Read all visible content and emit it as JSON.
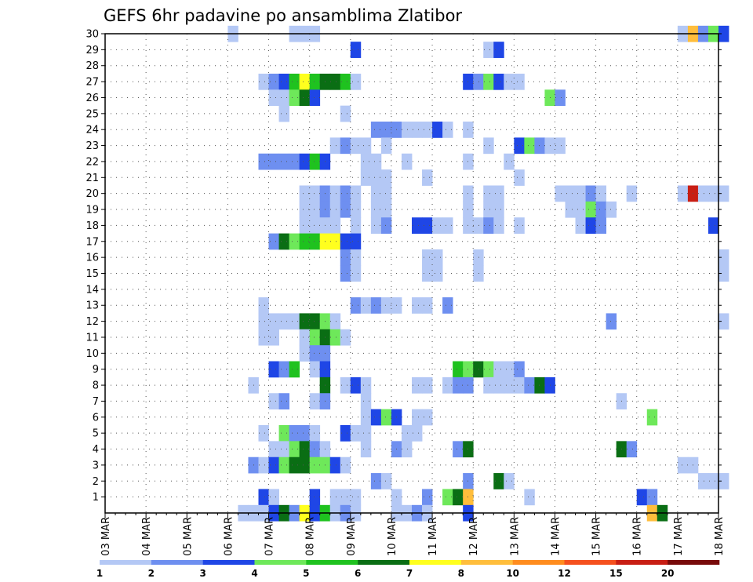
{
  "chart_data": {
    "type": "heatmap",
    "title": "GEFS 6hr padavine po ansamblima Zlatibor",
    "x_tick_labels": [
      "03 MAR",
      "04 MAR",
      "05 MAR",
      "06 MAR",
      "07 MAR",
      "08 MAR",
      "09 MAR",
      "10 MAR",
      "11 MAR",
      "12 MAR",
      "13 MAR",
      "14 MAR",
      "15 MAR",
      "16 MAR",
      "17 MAR",
      "18 MAR"
    ],
    "x_steps_per_day": 4,
    "y_tick_labels": [
      "1",
      "2",
      "3",
      "4",
      "5",
      "6",
      "7",
      "8",
      "9",
      "10",
      "11",
      "12",
      "13",
      "14",
      "15",
      "16",
      "17",
      "18",
      "19",
      "20",
      "21",
      "22",
      "23",
      "24",
      "25",
      "26",
      "27",
      "28",
      "29",
      "30"
    ],
    "y_range": [
      0,
      30
    ],
    "grid": true,
    "colorbar": {
      "position": "bottom",
      "labels": [
        "1",
        "2",
        "3",
        "4",
        "5",
        "6",
        "7",
        "8",
        "10",
        "12",
        "15",
        "20"
      ],
      "colors": [
        "#b4c8f5",
        "#6e8ff0",
        "#1f46e6",
        "#6ee85a",
        "#1fc21f",
        "#0a6e14",
        "#ffff1e",
        "#ffbe3c",
        "#ff8c1e",
        "#f5501e",
        "#c81e14",
        "#780a0a"
      ]
    },
    "cells": [
      [
        30,
        12,
        1
      ],
      [
        30,
        18,
        1
      ],
      [
        30,
        19,
        1
      ],
      [
        30,
        20,
        1
      ],
      [
        30,
        56,
        1
      ],
      [
        30,
        57,
        8
      ],
      [
        30,
        58,
        2
      ],
      [
        30,
        59,
        4
      ],
      [
        30,
        60,
        3
      ],
      [
        29,
        24,
        3
      ],
      [
        29,
        37,
        1
      ],
      [
        29,
        38,
        3
      ],
      [
        27,
        15,
        1
      ],
      [
        27,
        16,
        2
      ],
      [
        27,
        17,
        3
      ],
      [
        27,
        18,
        5
      ],
      [
        27,
        19,
        7
      ],
      [
        27,
        20,
        5
      ],
      [
        27,
        21,
        6
      ],
      [
        27,
        22,
        6
      ],
      [
        27,
        23,
        5
      ],
      [
        27,
        24,
        1
      ],
      [
        27,
        35,
        3
      ],
      [
        27,
        36,
        2
      ],
      [
        27,
        37,
        4
      ],
      [
        27,
        38,
        3
      ],
      [
        27,
        39,
        1
      ],
      [
        27,
        40,
        1
      ],
      [
        26,
        16,
        1
      ],
      [
        26,
        17,
        1
      ],
      [
        26,
        18,
        4
      ],
      [
        26,
        19,
        6
      ],
      [
        26,
        20,
        3
      ],
      [
        26,
        43,
        4
      ],
      [
        26,
        44,
        2
      ],
      [
        25,
        17,
        1
      ],
      [
        25,
        23,
        1
      ],
      [
        24,
        26,
        2
      ],
      [
        24,
        27,
        2
      ],
      [
        24,
        28,
        2
      ],
      [
        24,
        29,
        1
      ],
      [
        24,
        30,
        1
      ],
      [
        24,
        31,
        1
      ],
      [
        24,
        32,
        3
      ],
      [
        24,
        33,
        1
      ],
      [
        24,
        35,
        1
      ],
      [
        23,
        22,
        1
      ],
      [
        23,
        23,
        2
      ],
      [
        23,
        24,
        1
      ],
      [
        23,
        25,
        1
      ],
      [
        23,
        27,
        1
      ],
      [
        23,
        37,
        1
      ],
      [
        23,
        40,
        3
      ],
      [
        23,
        41,
        4
      ],
      [
        23,
        42,
        2
      ],
      [
        23,
        43,
        1
      ],
      [
        23,
        44,
        1
      ],
      [
        22,
        15,
        2
      ],
      [
        22,
        16,
        2
      ],
      [
        22,
        17,
        2
      ],
      [
        22,
        18,
        2
      ],
      [
        22,
        19,
        3
      ],
      [
        22,
        20,
        5
      ],
      [
        22,
        21,
        3
      ],
      [
        22,
        25,
        1
      ],
      [
        22,
        26,
        1
      ],
      [
        22,
        29,
        1
      ],
      [
        22,
        35,
        1
      ],
      [
        22,
        39,
        1
      ],
      [
        21,
        25,
        1
      ],
      [
        21,
        26,
        1
      ],
      [
        21,
        27,
        1
      ],
      [
        21,
        31,
        1
      ],
      [
        21,
        40,
        1
      ],
      [
        20,
        19,
        1
      ],
      [
        20,
        20,
        1
      ],
      [
        20,
        21,
        2
      ],
      [
        20,
        22,
        1
      ],
      [
        20,
        23,
        2
      ],
      [
        20,
        24,
        1
      ],
      [
        20,
        26,
        1
      ],
      [
        20,
        27,
        1
      ],
      [
        20,
        35,
        1
      ],
      [
        20,
        37,
        1
      ],
      [
        20,
        38,
        1
      ],
      [
        20,
        44,
        1
      ],
      [
        20,
        45,
        1
      ],
      [
        20,
        46,
        1
      ],
      [
        20,
        47,
        2
      ],
      [
        20,
        48,
        1
      ],
      [
        20,
        51,
        1
      ],
      [
        20,
        56,
        1
      ],
      [
        20,
        57,
        11
      ],
      [
        20,
        58,
        1
      ],
      [
        20,
        59,
        1
      ],
      [
        20,
        60,
        1
      ],
      [
        19,
        19,
        1
      ],
      [
        19,
        20,
        1
      ],
      [
        19,
        21,
        2
      ],
      [
        19,
        22,
        1
      ],
      [
        19,
        23,
        2
      ],
      [
        19,
        24,
        1
      ],
      [
        19,
        26,
        1
      ],
      [
        19,
        27,
        1
      ],
      [
        19,
        35,
        1
      ],
      [
        19,
        37,
        1
      ],
      [
        19,
        38,
        1
      ],
      [
        19,
        45,
        1
      ],
      [
        19,
        46,
        1
      ],
      [
        19,
        47,
        4
      ],
      [
        19,
        48,
        2
      ],
      [
        19,
        49,
        1
      ],
      [
        18,
        19,
        1
      ],
      [
        18,
        20,
        1
      ],
      [
        18,
        21,
        1
      ],
      [
        18,
        22,
        1
      ],
      [
        18,
        24,
        1
      ],
      [
        18,
        26,
        1
      ],
      [
        18,
        27,
        2
      ],
      [
        18,
        30,
        3
      ],
      [
        18,
        31,
        3
      ],
      [
        18,
        32,
        1
      ],
      [
        18,
        33,
        1
      ],
      [
        18,
        35,
        1
      ],
      [
        18,
        36,
        1
      ],
      [
        18,
        37,
        2
      ],
      [
        18,
        38,
        1
      ],
      [
        18,
        40,
        1
      ],
      [
        18,
        46,
        1
      ],
      [
        18,
        47,
        3
      ],
      [
        18,
        48,
        2
      ],
      [
        18,
        59,
        3
      ],
      [
        17,
        16,
        2
      ],
      [
        17,
        17,
        6
      ],
      [
        17,
        18,
        4
      ],
      [
        17,
        19,
        5
      ],
      [
        17,
        20,
        5
      ],
      [
        17,
        21,
        7
      ],
      [
        17,
        22,
        7
      ],
      [
        17,
        23,
        3
      ],
      [
        17,
        24,
        3
      ],
      [
        16,
        23,
        2
      ],
      [
        16,
        24,
        1
      ],
      [
        16,
        31,
        1
      ],
      [
        16,
        32,
        1
      ],
      [
        16,
        36,
        1
      ],
      [
        16,
        60,
        1
      ],
      [
        15,
        23,
        2
      ],
      [
        15,
        24,
        1
      ],
      [
        15,
        31,
        1
      ],
      [
        15,
        32,
        1
      ],
      [
        15,
        36,
        1
      ],
      [
        15,
        60,
        1
      ],
      [
        13,
        15,
        1
      ],
      [
        13,
        24,
        2
      ],
      [
        13,
        25,
        1
      ],
      [
        13,
        26,
        2
      ],
      [
        13,
        27,
        1
      ],
      [
        13,
        28,
        1
      ],
      [
        13,
        30,
        1
      ],
      [
        13,
        31,
        1
      ],
      [
        13,
        33,
        2
      ],
      [
        12,
        15,
        1
      ],
      [
        12,
        16,
        1
      ],
      [
        12,
        17,
        1
      ],
      [
        12,
        18,
        1
      ],
      [
        12,
        19,
        6
      ],
      [
        12,
        20,
        6
      ],
      [
        12,
        21,
        4
      ],
      [
        12,
        22,
        1
      ],
      [
        12,
        49,
        2
      ],
      [
        12,
        60,
        1
      ],
      [
        11,
        15,
        1
      ],
      [
        11,
        16,
        1
      ],
      [
        11,
        19,
        1
      ],
      [
        11,
        20,
        4
      ],
      [
        11,
        21,
        6
      ],
      [
        11,
        22,
        4
      ],
      [
        11,
        23,
        1
      ],
      [
        10,
        19,
        1
      ],
      [
        10,
        20,
        2
      ],
      [
        10,
        21,
        2
      ],
      [
        9,
        16,
        3
      ],
      [
        9,
        17,
        2
      ],
      [
        9,
        18,
        5
      ],
      [
        9,
        20,
        1
      ],
      [
        9,
        21,
        3
      ],
      [
        9,
        34,
        5
      ],
      [
        9,
        35,
        4
      ],
      [
        9,
        36,
        6
      ],
      [
        9,
        37,
        4
      ],
      [
        9,
        38,
        1
      ],
      [
        9,
        39,
        1
      ],
      [
        9,
        40,
        2
      ],
      [
        8,
        14,
        1
      ],
      [
        8,
        21,
        6
      ],
      [
        8,
        23,
        1
      ],
      [
        8,
        24,
        3
      ],
      [
        8,
        25,
        1
      ],
      [
        8,
        30,
        1
      ],
      [
        8,
        31,
        1
      ],
      [
        8,
        33,
        1
      ],
      [
        8,
        34,
        2
      ],
      [
        8,
        35,
        2
      ],
      [
        8,
        37,
        1
      ],
      [
        8,
        38,
        1
      ],
      [
        8,
        39,
        1
      ],
      [
        8,
        40,
        1
      ],
      [
        8,
        41,
        2
      ],
      [
        8,
        42,
        6
      ],
      [
        8,
        43,
        3
      ],
      [
        7,
        16,
        1
      ],
      [
        7,
        17,
        2
      ],
      [
        7,
        20,
        1
      ],
      [
        7,
        21,
        2
      ],
      [
        7,
        25,
        1
      ],
      [
        7,
        50,
        1
      ],
      [
        6,
        25,
        1
      ],
      [
        6,
        26,
        3
      ],
      [
        6,
        27,
        4
      ],
      [
        6,
        28,
        3
      ],
      [
        6,
        30,
        1
      ],
      [
        6,
        31,
        1
      ],
      [
        6,
        53,
        4
      ],
      [
        5,
        15,
        1
      ],
      [
        5,
        17,
        4
      ],
      [
        5,
        18,
        2
      ],
      [
        5,
        19,
        2
      ],
      [
        5,
        20,
        1
      ],
      [
        5,
        23,
        3
      ],
      [
        5,
        24,
        1
      ],
      [
        5,
        25,
        1
      ],
      [
        5,
        29,
        1
      ],
      [
        5,
        30,
        1
      ],
      [
        4,
        16,
        1
      ],
      [
        4,
        17,
        1
      ],
      [
        4,
        18,
        4
      ],
      [
        4,
        19,
        6
      ],
      [
        4,
        20,
        2
      ],
      [
        4,
        21,
        1
      ],
      [
        4,
        25,
        1
      ],
      [
        4,
        28,
        2
      ],
      [
        4,
        29,
        1
      ],
      [
        4,
        34,
        2
      ],
      [
        4,
        35,
        6
      ],
      [
        4,
        50,
        6
      ],
      [
        4,
        51,
        2
      ],
      [
        3,
        14,
        2
      ],
      [
        3,
        15,
        1
      ],
      [
        3,
        16,
        3
      ],
      [
        3,
        17,
        4
      ],
      [
        3,
        18,
        6
      ],
      [
        3,
        19,
        6
      ],
      [
        3,
        20,
        4
      ],
      [
        3,
        21,
        4
      ],
      [
        3,
        22,
        3
      ],
      [
        3,
        23,
        1
      ],
      [
        3,
        56,
        1
      ],
      [
        3,
        57,
        1
      ],
      [
        2,
        26,
        2
      ],
      [
        2,
        27,
        1
      ],
      [
        2,
        35,
        2
      ],
      [
        2,
        38,
        6
      ],
      [
        2,
        39,
        1
      ],
      [
        2,
        58,
        1
      ],
      [
        2,
        59,
        1
      ],
      [
        2,
        60,
        1
      ],
      [
        1,
        15,
        3
      ],
      [
        1,
        16,
        1
      ],
      [
        1,
        20,
        3
      ],
      [
        1,
        22,
        1
      ],
      [
        1,
        23,
        1
      ],
      [
        1,
        24,
        1
      ],
      [
        1,
        28,
        1
      ],
      [
        1,
        31,
        2
      ],
      [
        1,
        33,
        4
      ],
      [
        1,
        34,
        6
      ],
      [
        1,
        35,
        8
      ],
      [
        1,
        41,
        1
      ],
      [
        1,
        52,
        3
      ],
      [
        1,
        53,
        2
      ],
      [
        0,
        13,
        1
      ],
      [
        0,
        14,
        1
      ],
      [
        0,
        15,
        1
      ],
      [
        0,
        16,
        3
      ],
      [
        0,
        17,
        6
      ],
      [
        0,
        18,
        2
      ],
      [
        0,
        19,
        7
      ],
      [
        0,
        20,
        3
      ],
      [
        0,
        21,
        5
      ],
      [
        0,
        22,
        1
      ],
      [
        0,
        23,
        2
      ],
      [
        0,
        24,
        1
      ],
      [
        0,
        28,
        1
      ],
      [
        0,
        29,
        1
      ],
      [
        0,
        30,
        2
      ],
      [
        0,
        31,
        1
      ],
      [
        0,
        35,
        3
      ],
      [
        0,
        53,
        8
      ],
      [
        0,
        54,
        6
      ]
    ]
  }
}
